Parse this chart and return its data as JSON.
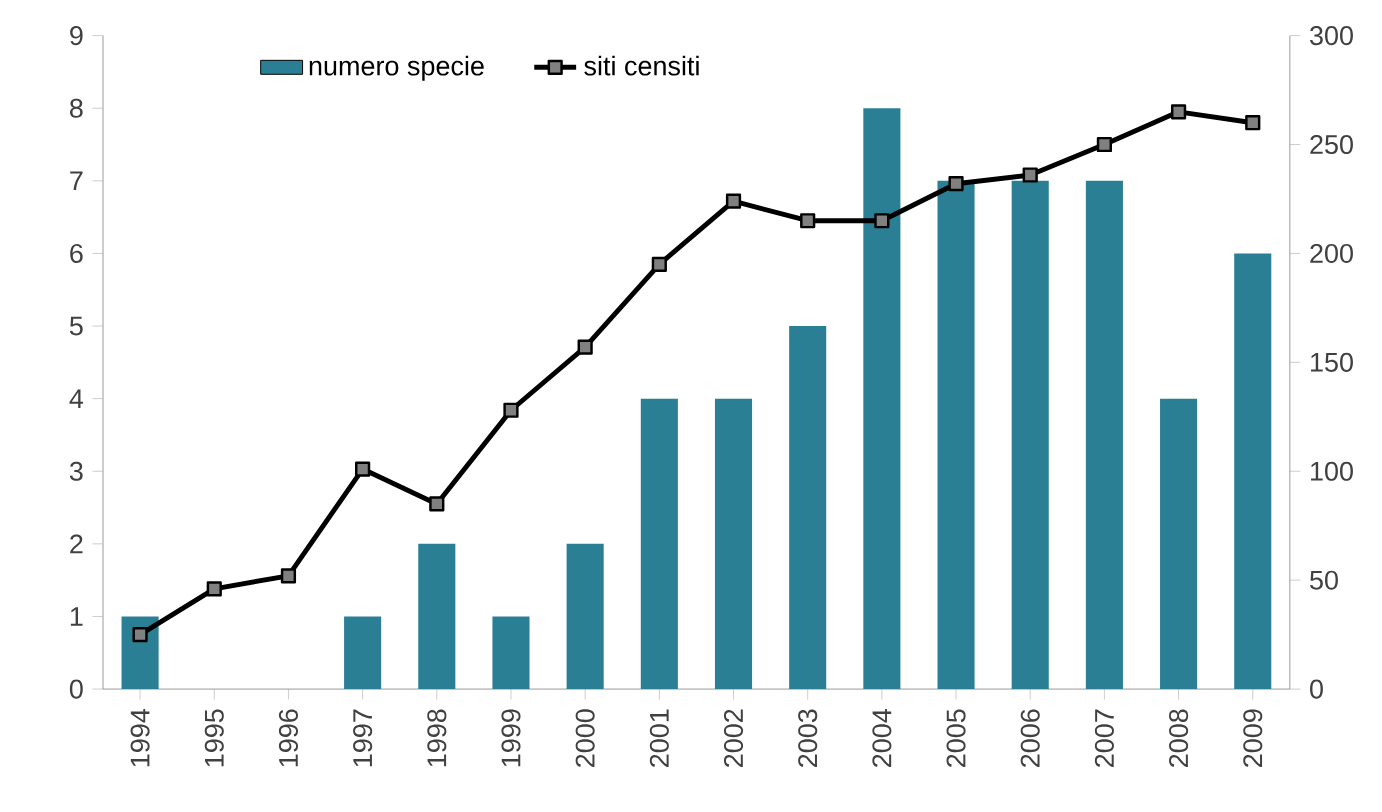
{
  "chart_data": {
    "type": "bar",
    "categories": [
      "1994",
      "1995",
      "1996",
      "1997",
      "1998",
      "1999",
      "2000",
      "2001",
      "2002",
      "2003",
      "2004",
      "2005",
      "2006",
      "2007",
      "2008",
      "2009"
    ],
    "series": [
      {
        "name": "numero specie",
        "color": "#2a7f95",
        "values": [
          1,
          0,
          0,
          1,
          2,
          1,
          2,
          4,
          4,
          5,
          8,
          7,
          7,
          7,
          4,
          6
        ]
      },
      {
        "name": "siti censiti",
        "type": "line",
        "axis": "y2",
        "color": "#000000",
        "marker": "square",
        "values": [
          25,
          46,
          52,
          101,
          85,
          128,
          157,
          195,
          224,
          215,
          215,
          232,
          236,
          250,
          265,
          260
        ]
      }
    ],
    "ylim": [
      0,
      9
    ],
    "yticks": [
      0,
      1,
      2,
      3,
      4,
      5,
      6,
      7,
      8,
      9
    ],
    "y2lim": [
      0,
      300
    ],
    "y2ticks": [
      0,
      50,
      100,
      150,
      200,
      250,
      300
    ],
    "grid": false,
    "legend": "top"
  }
}
